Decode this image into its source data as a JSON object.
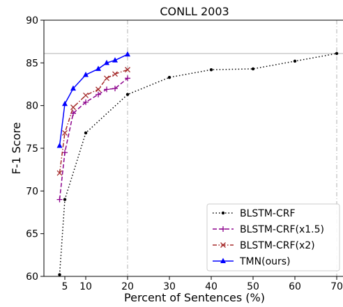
{
  "chart_data": {
    "type": "line",
    "title": "CONLL 2003",
    "xlabel": "Percent of Sentences (%)",
    "ylabel": "F-1 Score",
    "xlim": [
      0,
      72
    ],
    "ylim": [
      60,
      90
    ],
    "xticks": [
      5,
      10,
      20,
      30,
      40,
      50,
      60,
      70
    ],
    "yticks": [
      60,
      65,
      70,
      75,
      80,
      85,
      90
    ],
    "grid": false,
    "reference_lines": {
      "horizontal_y": 86.1,
      "vertical_x": [
        20,
        70
      ],
      "color": "#b0b0b0"
    },
    "legend_position": "lower-right",
    "series": [
      {
        "name": "BLSTM-CRF",
        "color": "#000000",
        "line_style": "dotted",
        "marker": "point",
        "x": [
          3.75,
          5,
          10,
          20,
          30,
          40,
          50,
          60,
          70
        ],
        "y": [
          60.2,
          69.0,
          76.8,
          81.3,
          83.3,
          84.2,
          84.3,
          85.2,
          86.1
        ]
      },
      {
        "name": "BLSTM-CRF(x1.5)",
        "color": "#8b008b",
        "line_style": "dashed",
        "marker": "plus",
        "x": [
          3.75,
          5,
          7,
          10,
          13,
          15,
          17,
          20
        ],
        "y": [
          69.0,
          74.5,
          79.1,
          80.4,
          81.3,
          81.9,
          82.0,
          83.2
        ]
      },
      {
        "name": "BLSTM-CRF(x2)",
        "color": "#a52a2a",
        "line_style": "dashdot",
        "marker": "x",
        "x": [
          3.75,
          5,
          7,
          10,
          13,
          15,
          17,
          20
        ],
        "y": [
          72.1,
          76.8,
          79.8,
          81.2,
          81.9,
          83.2,
          83.7,
          84.2
        ]
      },
      {
        "name": "TMN(ours)",
        "color": "#0000ff",
        "line_style": "solid",
        "marker": "triangle",
        "x": [
          3.75,
          5,
          7,
          10,
          13,
          15,
          17,
          20
        ],
        "y": [
          75.3,
          80.2,
          82.0,
          83.6,
          84.3,
          85.0,
          85.3,
          86.0
        ]
      }
    ]
  }
}
